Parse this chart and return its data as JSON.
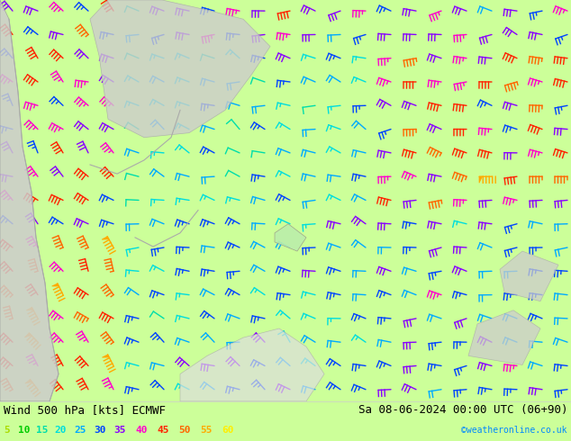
{
  "title_left": "Wind 500 hPa [kts] ECMWF",
  "title_right": "Sa 08-06-2024 00:00 UTC (06+90)",
  "watermark": "©weatheronline.co.uk",
  "legend_values": [
    5,
    10,
    15,
    20,
    25,
    30,
    35,
    40,
    45,
    50,
    55,
    60
  ],
  "legend_colors": [
    "#aadd00",
    "#00cc00",
    "#00ddaa",
    "#00dddd",
    "#00aaff",
    "#0044ff",
    "#8800ff",
    "#ff00cc",
    "#ff2200",
    "#ff6600",
    "#ffaa00",
    "#ffee00"
  ],
  "bg_color": "#ccff99",
  "land_color_light": "#ccff99",
  "land_color_dark": "#aaeebb",
  "sea_color": "#dddddd",
  "fig_width": 6.34,
  "fig_height": 4.9,
  "dpi": 100,
  "bottom_bar_color": "#ffffff",
  "title_fontsize": 9,
  "legend_fontsize": 8,
  "watermark_color": "#0088ff",
  "watermark_fontsize": 7,
  "title_color": "black"
}
